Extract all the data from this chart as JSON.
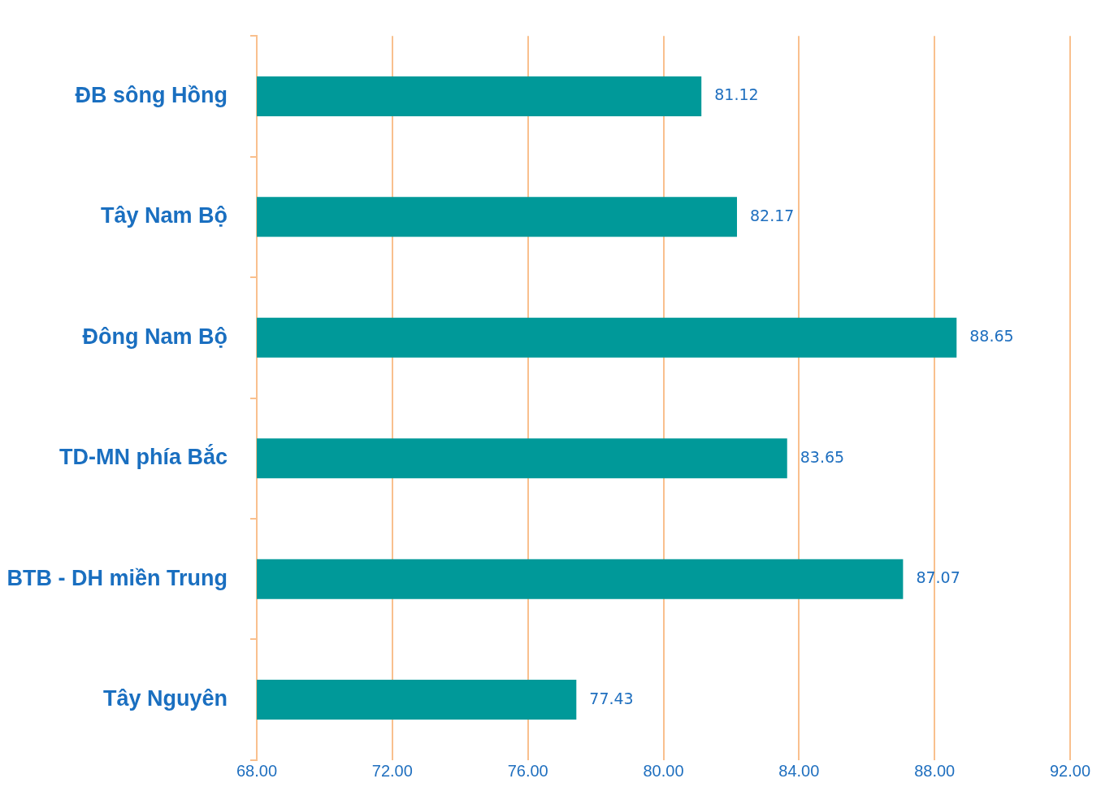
{
  "chart_data": {
    "type": "bar",
    "orientation": "horizontal",
    "categories": [
      "ĐB sông Hồng",
      "Tây Nam Bộ",
      "Đông Nam Bộ",
      "TD-MN phía Bắc",
      "BTB - DH miền Trung",
      "Tây Nguyên"
    ],
    "values": [
      81.12,
      82.17,
      88.65,
      83.65,
      87.07,
      77.43
    ],
    "color": "#009999",
    "xlim": [
      68,
      92
    ],
    "xticks": [
      {
        "value": 68,
        "label": "68.00"
      },
      {
        "value": 72,
        "label": "72.00"
      },
      {
        "value": 76,
        "label": "76.00"
      },
      {
        "value": 80,
        "label": "80.00"
      },
      {
        "value": 84,
        "label": "84.00"
      },
      {
        "value": 88,
        "label": "88.00"
      },
      {
        "value": 92,
        "label": "92.00"
      }
    ],
    "grid": "x",
    "data_labels": true,
    "legend": false
  }
}
